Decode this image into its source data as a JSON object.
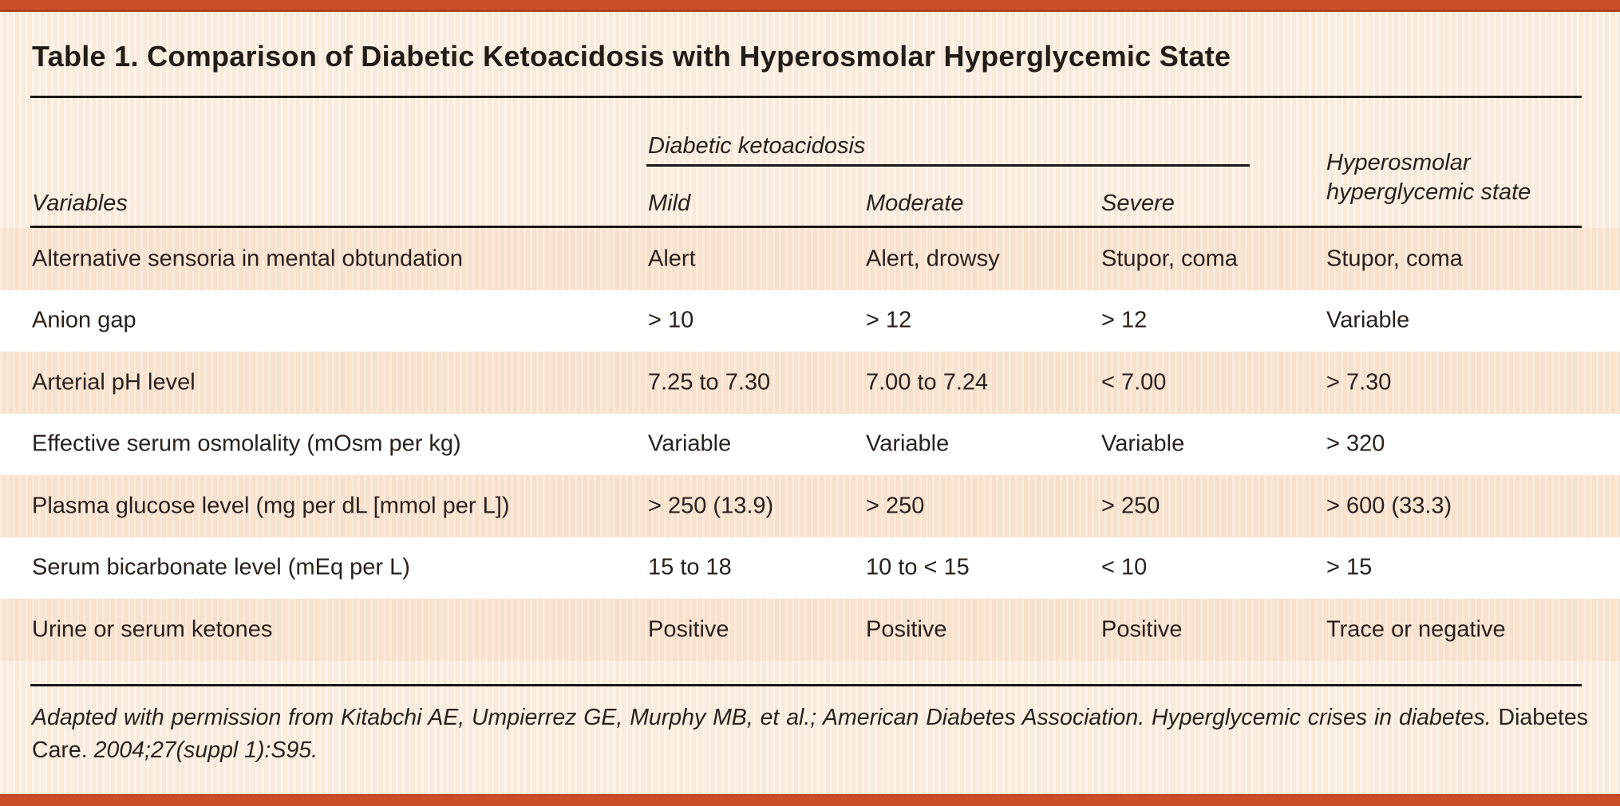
{
  "title": "Table 1. Comparison of Diabetic Ketoacidosis with Hyperosmolar Hyperglycemic State",
  "table": {
    "group_header": "Diabetic ketoacidosis",
    "col_variables": "Variables",
    "col_mild": "Mild",
    "col_moderate": "Moderate",
    "col_severe": "Severe",
    "col_hhs": "Hyperosmolar hyperglycemic state",
    "rows": [
      {
        "variable": "Alternative sensoria in mental obtundation",
        "mild": "Alert",
        "moderate": "Alert, drowsy",
        "severe": "Stupor, coma",
        "hhs": "Stupor, coma"
      },
      {
        "variable": "Anion gap",
        "mild": "> 10",
        "moderate": "> 12",
        "severe": "> 12",
        "hhs": "Variable"
      },
      {
        "variable": "Arterial pH level",
        "mild": "7.25 to 7.30",
        "moderate": "7.00 to 7.24",
        "severe": "< 7.00",
        "hhs": "> 7.30"
      },
      {
        "variable": "Effective serum osmolality (mOsm per kg)",
        "mild": "Variable",
        "moderate": "Variable",
        "severe": "Variable",
        "hhs": "> 320"
      },
      {
        "variable": "Plasma glucose level (mg per dL [mmol per L])",
        "mild": "> 250 (13.9)",
        "moderate": "> 250",
        "severe": "> 250",
        "hhs": "> 600 (33.3)"
      },
      {
        "variable": "Serum bicarbonate level (mEq per L)",
        "mild": "15 to 18",
        "moderate": "10 to < 15",
        "severe": "< 10",
        "hhs": "> 15"
      },
      {
        "variable": "Urine or serum ketones",
        "mild": "Positive",
        "moderate": "Positive",
        "severe": "Positive",
        "hhs": "Trace or negative"
      }
    ]
  },
  "footnote": {
    "italic_lead": "Adapted with permission from Kitabchi AE, Umpierrez GE, Murphy MB, et al.; American Diabetes Association. Hyperglycemic crises in diabetes.",
    "journal": "Diabetes Care.",
    "italic_tail": "2004;27(suppl 1):S95."
  },
  "colors": {
    "accent_bar": "#CC4E26",
    "background_cream": "#F9EBDB",
    "row_peach": "#F8E1CD",
    "row_white": "#FFFFFF",
    "rule": "#1C1714",
    "text": "#29211C"
  }
}
